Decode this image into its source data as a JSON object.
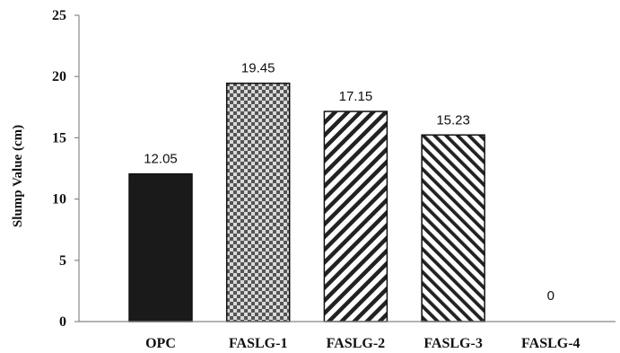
{
  "chart_data": {
    "type": "bar",
    "title": "",
    "xlabel": "",
    "ylabel": "Slump Value (cm)",
    "categories": [
      "OPC",
      "FASLG-1",
      "FASLG-2",
      "FASLG-3",
      "FASLG-4"
    ],
    "values": [
      12.05,
      19.45,
      17.15,
      15.23,
      0
    ],
    "value_labels": [
      "12.05",
      "19.45",
      "17.15",
      "15.23",
      "0"
    ],
    "ylim": [
      0,
      25
    ],
    "yticks": [
      0,
      5,
      10,
      15,
      20,
      25
    ],
    "grid": false,
    "legend": "none",
    "bar_styles": [
      "solid",
      "checkered",
      "diagonal-right",
      "diagonal-left",
      "none"
    ],
    "colors": {
      "solid_fill": "#1a1a1a",
      "pattern_ink": "#222222",
      "checker_light": "#d9d9d9",
      "axis": "#888888"
    }
  }
}
